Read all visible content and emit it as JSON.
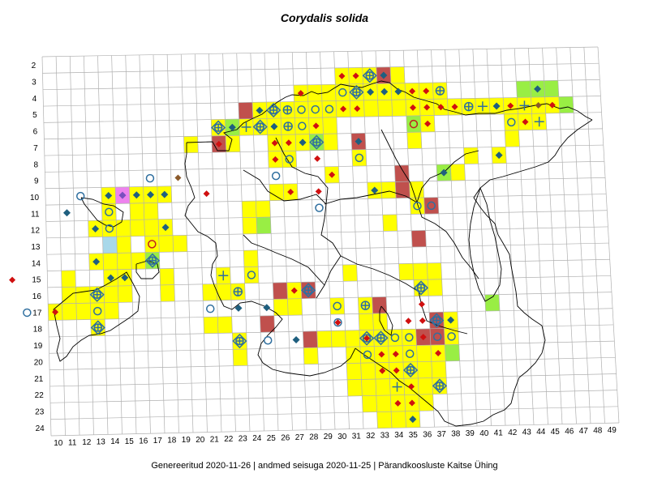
{
  "title": "Corydalis solida",
  "footer": "Genereeritud 2020-11-26  |  andmed seisuga 2020-11-25  |  Pärandkoosluste Kaitse Ühing",
  "grid": {
    "columns": [
      10,
      11,
      12,
      13,
      14,
      15,
      16,
      17,
      18,
      19,
      20,
      21,
      22,
      23,
      24,
      25,
      26,
      27,
      28,
      29,
      30,
      31,
      32,
      33,
      34,
      35,
      36,
      37,
      38,
      39,
      40,
      41,
      42,
      43,
      44,
      45,
      46,
      47,
      48,
      49
    ],
    "rows": [
      2,
      3,
      4,
      5,
      6,
      7,
      8,
      9,
      10,
      11,
      12,
      13,
      14,
      15,
      16,
      17,
      18,
      19,
      20,
      21,
      22,
      23,
      24
    ]
  },
  "colors": {
    "yellow": "#ffff00",
    "red": "#c0504d",
    "green": "#99ee44",
    "lightblue": "#a8d8ea",
    "pink": "#ee82ee",
    "diamond_blue": "#1f5f7f",
    "diamond_red": "#d01010",
    "diamond_brown": "#8b5a2b",
    "ring_blue": "#2f6f9f",
    "ring_red": "#c02020"
  },
  "cells": [
    {
      "c": 31,
      "r": 3,
      "f": "yellow",
      "m": "dr"
    },
    {
      "c": 32,
      "r": 3,
      "f": "yellow",
      "m": "dr"
    },
    {
      "c": 33,
      "r": 3,
      "f": "yellow",
      "m": "cdx"
    },
    {
      "c": 34,
      "r": 3,
      "f": "red",
      "m": "db"
    },
    {
      "c": 35,
      "r": 3,
      "f": "yellow"
    },
    {
      "c": 28,
      "r": 4,
      "f": "yellow",
      "m": "dr"
    },
    {
      "c": 29,
      "r": 4,
      "f": "yellow"
    },
    {
      "c": 30,
      "r": 4,
      "f": "yellow"
    },
    {
      "c": 31,
      "r": 4,
      "f": "yellow",
      "m": "o"
    },
    {
      "c": 32,
      "r": 4,
      "f": "yellow",
      "m": "cdx"
    },
    {
      "c": 33,
      "r": 4,
      "f": "yellow",
      "m": "db"
    },
    {
      "c": 34,
      "r": 4,
      "f": "yellow",
      "m": "db"
    },
    {
      "c": 35,
      "r": 4,
      "f": "yellow",
      "m": "db"
    },
    {
      "c": 36,
      "r": 4,
      "f": "yellow",
      "m": "dr"
    },
    {
      "c": 37,
      "r": 4,
      "f": "yellow",
      "m": "dr"
    },
    {
      "c": 38,
      "r": 4,
      "f": "yellow",
      "m": "ox"
    },
    {
      "c": 44,
      "r": 4,
      "f": "green"
    },
    {
      "c": 45,
      "r": 4,
      "f": "green",
      "m": "db"
    },
    {
      "c": 46,
      "r": 4,
      "f": "green"
    },
    {
      "c": 24,
      "r": 5,
      "f": "red"
    },
    {
      "c": 25,
      "r": 5,
      "f": "yellow",
      "m": "dd"
    },
    {
      "c": 26,
      "r": 5,
      "f": "yellow",
      "m": "cdx"
    },
    {
      "c": 27,
      "r": 5,
      "f": "yellow",
      "m": "ox"
    },
    {
      "c": 28,
      "r": 5,
      "f": "yellow",
      "m": "o"
    },
    {
      "c": 29,
      "r": 5,
      "f": "yellow",
      "m": "o"
    },
    {
      "c": 30,
      "r": 5,
      "f": "yellow",
      "m": "o"
    },
    {
      "c": 31,
      "r": 5,
      "f": "yellow",
      "m": "dr"
    },
    {
      "c": 32,
      "r": 5,
      "f": "yellow",
      "m": "dr"
    },
    {
      "c": 33,
      "r": 5,
      "f": "yellow"
    },
    {
      "c": 34,
      "r": 5,
      "f": "yellow"
    },
    {
      "c": 35,
      "r": 5,
      "f": "yellow"
    },
    {
      "c": 36,
      "r": 5,
      "f": "yellow",
      "m": "dr"
    },
    {
      "c": 37,
      "r": 5,
      "f": "yellow",
      "m": "dr"
    },
    {
      "c": 38,
      "r": 5,
      "f": "yellow",
      "m": "dr"
    },
    {
      "c": 39,
      "r": 5,
      "f": "yellow",
      "m": "dr"
    },
    {
      "c": 40,
      "r": 5,
      "f": "yellow",
      "m": "ox"
    },
    {
      "c": 41,
      "r": 5,
      "f": "yellow",
      "m": "p"
    },
    {
      "c": 42,
      "r": 5,
      "f": "yellow",
      "m": "db"
    },
    {
      "c": 43,
      "r": 5,
      "f": "yellow",
      "m": "dr"
    },
    {
      "c": 44,
      "r": 5,
      "f": "yellow",
      "m": "p"
    },
    {
      "c": 45,
      "r": 5,
      "f": "yellow",
      "m": "dbr"
    },
    {
      "c": 46,
      "r": 5,
      "f": "yellow",
      "m": "dr"
    },
    {
      "c": 47,
      "r": 5,
      "f": "green"
    },
    {
      "c": 22,
      "r": 6,
      "f": "yellow",
      "m": "cdx"
    },
    {
      "c": 23,
      "r": 6,
      "f": "green",
      "m": "db"
    },
    {
      "c": 24,
      "r": 6,
      "f": "yellow",
      "m": "p"
    },
    {
      "c": 25,
      "r": 6,
      "f": "yellow",
      "m": "cdx"
    },
    {
      "c": 26,
      "r": 6,
      "f": "yellow",
      "m": "db"
    },
    {
      "c": 27,
      "r": 6,
      "f": "yellow",
      "m": "ox"
    },
    {
      "c": 28,
      "r": 6,
      "f": "yellow",
      "m": "o"
    },
    {
      "c": 29,
      "r": 6,
      "f": "yellow",
      "m": "dr"
    },
    {
      "c": 30,
      "r": 6,
      "f": "yellow"
    },
    {
      "c": 36,
      "r": 6,
      "f": "green",
      "m": "or"
    },
    {
      "c": 37,
      "r": 6,
      "f": "yellow",
      "m": "dr"
    },
    {
      "c": 43,
      "r": 6,
      "f": "yellow",
      "m": "o"
    },
    {
      "c": 44,
      "r": 6,
      "f": "yellow",
      "m": "dr"
    },
    {
      "c": 45,
      "r": 6,
      "f": "yellow",
      "m": "p"
    },
    {
      "c": 20,
      "r": 7,
      "f": "yellow"
    },
    {
      "c": 22,
      "r": 7,
      "f": "red",
      "m": "dr"
    },
    {
      "c": 23,
      "r": 7,
      "f": "yellow"
    },
    {
      "c": 26,
      "r": 7,
      "f": "yellow",
      "m": "dr"
    },
    {
      "c": 27,
      "r": 7,
      "f": "yellow"
    },
    {
      "c": 28,
      "r": 7,
      "f": "yellow",
      "m": "db"
    },
    {
      "c": 29,
      "r": 7,
      "f": "green",
      "m": "cdx"
    },
    {
      "c": 30,
      "r": 7,
      "f": "yellow"
    },
    {
      "c": 32,
      "r": 7,
      "f": "red",
      "m": "db"
    },
    {
      "c": 36,
      "r": 7,
      "f": "yellow"
    },
    {
      "c": 43,
      "r": 7,
      "f": "yellow"
    },
    {
      "c": 26,
      "r": 8,
      "f": "yellow",
      "m": "dr"
    },
    {
      "c": 27,
      "r": 8,
      "f": "yellow",
      "m": "o"
    },
    {
      "c": 32,
      "r": 8,
      "f": "yellow",
      "m": "o"
    },
    {
      "c": 40,
      "r": 8,
      "f": "yellow"
    },
    {
      "c": 42,
      "r": 8,
      "f": "yellow",
      "m": "db"
    },
    {
      "c": 30,
      "r": 9,
      "f": "yellow",
      "m": "dr"
    },
    {
      "c": 35,
      "r": 9,
      "f": "red"
    },
    {
      "c": 38,
      "r": 9,
      "f": "green",
      "m": "db"
    },
    {
      "c": 39,
      "r": 9,
      "f": "yellow"
    },
    {
      "c": 14,
      "r": 10,
      "f": "yellow",
      "m": "db"
    },
    {
      "c": 15,
      "r": 10,
      "f": "pink",
      "m": "dp"
    },
    {
      "c": 16,
      "r": 10,
      "f": "yellow",
      "m": "db"
    },
    {
      "c": 17,
      "r": 10,
      "f": "yellow",
      "m": "db"
    },
    {
      "c": 18,
      "r": 10,
      "f": "yellow",
      "m": "db"
    },
    {
      "c": 26,
      "r": 10,
      "f": "yellow"
    },
    {
      "c": 27,
      "r": 10,
      "f": "yellow",
      "m": "dr"
    },
    {
      "c": 33,
      "r": 10,
      "f": "yellow",
      "m": "db"
    },
    {
      "c": 34,
      "r": 10,
      "f": "yellow"
    },
    {
      "c": 35,
      "r": 10,
      "f": "red"
    },
    {
      "c": 36,
      "r": 10,
      "f": "yellow"
    },
    {
      "c": 14,
      "r": 11,
      "f": "yellow",
      "m": "o"
    },
    {
      "c": 16,
      "r": 11,
      "f": "yellow"
    },
    {
      "c": 17,
      "r": 11,
      "f": "yellow"
    },
    {
      "c": 24,
      "r": 11,
      "f": "yellow"
    },
    {
      "c": 25,
      "r": 11,
      "f": "yellow"
    },
    {
      "c": 36,
      "r": 11,
      "f": "yellow"
    },
    {
      "c": 37,
      "r": 11,
      "f": "red",
      "m": "o"
    },
    {
      "c": 13,
      "r": 12,
      "f": "yellow",
      "m": "db"
    },
    {
      "c": 14,
      "r": 12,
      "f": "yellow",
      "m": "o"
    },
    {
      "c": 15,
      "r": 12,
      "f": "yellow"
    },
    {
      "c": 16,
      "r": 12,
      "f": "yellow"
    },
    {
      "c": 17,
      "r": 12,
      "f": "yellow"
    },
    {
      "c": 18,
      "r": 12,
      "f": "yellow",
      "m": "db"
    },
    {
      "c": 24,
      "r": 12,
      "f": "yellow"
    },
    {
      "c": 25,
      "r": 12,
      "f": "green"
    },
    {
      "c": 34,
      "r": 12,
      "f": "yellow"
    },
    {
      "c": 14,
      "r": 13,
      "f": "lightblue"
    },
    {
      "c": 15,
      "r": 13,
      "f": "yellow"
    },
    {
      "c": 17,
      "r": 13,
      "f": "yellow",
      "m": "or"
    },
    {
      "c": 18,
      "r": 13,
      "f": "yellow"
    },
    {
      "c": 19,
      "r": 13,
      "f": "yellow"
    },
    {
      "c": 36,
      "r": 13,
      "f": "red"
    },
    {
      "c": 13,
      "r": 14,
      "f": "yellow",
      "m": "db"
    },
    {
      "c": 14,
      "r": 14,
      "f": "yellow"
    },
    {
      "c": 15,
      "r": 14,
      "f": "yellow"
    },
    {
      "c": 16,
      "r": 14,
      "f": "yellow"
    },
    {
      "c": 17,
      "r": 14,
      "f": "green",
      "m": "cdx"
    },
    {
      "c": 24,
      "r": 14,
      "f": "yellow"
    },
    {
      "c": 11,
      "r": 15,
      "f": "yellow"
    },
    {
      "c": 14,
      "r": 15,
      "f": "yellow",
      "m": "db"
    },
    {
      "c": 15,
      "r": 15,
      "f": "yellow",
      "m": "db"
    },
    {
      "c": 18,
      "r": 15,
      "f": "yellow"
    },
    {
      "c": 22,
      "r": 15,
      "f": "yellow",
      "m": "p"
    },
    {
      "c": 24,
      "r": 15,
      "f": "yellow",
      "m": "o"
    },
    {
      "c": 31,
      "r": 15,
      "f": "yellow"
    },
    {
      "c": 35,
      "r": 15,
      "f": "yellow"
    },
    {
      "c": 36,
      "r": 15,
      "f": "yellow"
    },
    {
      "c": 37,
      "r": 15,
      "f": "yellow"
    },
    {
      "c": 11,
      "r": 16,
      "f": "yellow"
    },
    {
      "c": 12,
      "r": 16,
      "f": "yellow"
    },
    {
      "c": 13,
      "r": 16,
      "f": "yellow",
      "m": "cdx"
    },
    {
      "c": 14,
      "r": 16,
      "f": "yellow"
    },
    {
      "c": 15,
      "r": 16,
      "f": "yellow"
    },
    {
      "c": 18,
      "r": 16,
      "f": "yellow"
    },
    {
      "c": 21,
      "r": 16,
      "f": "yellow"
    },
    {
      "c": 22,
      "r": 16,
      "f": "yellow"
    },
    {
      "c": 23,
      "r": 16,
      "f": "yellow",
      "m": "ox"
    },
    {
      "c": 26,
      "r": 16,
      "f": "red"
    },
    {
      "c": 27,
      "r": 16,
      "f": "yellow",
      "m": "dr"
    },
    {
      "c": 28,
      "r": 16,
      "f": "red",
      "m": "cdx"
    },
    {
      "c": 36,
      "r": 16,
      "f": "yellow",
      "m": "cdx"
    },
    {
      "c": 37,
      "r": 16,
      "f": "yellow"
    },
    {
      "c": 10,
      "r": 17,
      "f": "yellow",
      "m": "dr"
    },
    {
      "c": 11,
      "r": 17,
      "f": "yellow"
    },
    {
      "c": 12,
      "r": 17,
      "f": "yellow"
    },
    {
      "c": 13,
      "r": 17,
      "f": "yellow",
      "m": "o"
    },
    {
      "c": 14,
      "r": 17,
      "f": "yellow"
    },
    {
      "c": 26,
      "r": 17,
      "f": "yellow"
    },
    {
      "c": 27,
      "r": 17,
      "f": "yellow"
    },
    {
      "c": 30,
      "r": 17,
      "f": "yellow",
      "m": "o"
    },
    {
      "c": 32,
      "r": 17,
      "f": "yellow",
      "m": "ox"
    },
    {
      "c": 33,
      "r": 17,
      "f": "red"
    },
    {
      "c": 41,
      "r": 17,
      "f": "green"
    },
    {
      "c": 13,
      "r": 18,
      "f": "yellow",
      "m": "cdx"
    },
    {
      "c": 21,
      "r": 18,
      "f": "yellow"
    },
    {
      "c": 22,
      "r": 18,
      "f": "yellow"
    },
    {
      "c": 25,
      "r": 18,
      "f": "red"
    },
    {
      "c": 32,
      "r": 18,
      "f": "yellow"
    },
    {
      "c": 33,
      "r": 18,
      "f": "yellow"
    },
    {
      "c": 37,
      "r": 18,
      "f": "red",
      "m": "cdx"
    },
    {
      "c": 38,
      "r": 18,
      "f": "yellow",
      "m": "db"
    },
    {
      "c": 23,
      "r": 19,
      "f": "yellow",
      "m": "cdx"
    },
    {
      "c": 28,
      "r": 19,
      "f": "red"
    },
    {
      "c": 29,
      "r": 19,
      "f": "yellow"
    },
    {
      "c": 30,
      "r": 19,
      "f": "yellow"
    },
    {
      "c": 31,
      "r": 19,
      "f": "yellow"
    },
    {
      "c": 32,
      "r": 19,
      "f": "yellow",
      "m": "cdx"
    },
    {
      "c": 33,
      "r": 19,
      "f": "yellow",
      "m": "cdx"
    },
    {
      "c": 34,
      "r": 19,
      "f": "yellow",
      "m": "o"
    },
    {
      "c": 35,
      "r": 19,
      "f": "yellow",
      "m": "o"
    },
    {
      "c": 36,
      "r": 19,
      "f": "red",
      "m": "dr"
    },
    {
      "c": 37,
      "r": 19,
      "f": "red",
      "m": "o"
    },
    {
      "c": 38,
      "r": 19,
      "f": "yellow",
      "m": "o"
    },
    {
      "c": 23,
      "r": 20,
      "f": "yellow"
    },
    {
      "c": 28,
      "r": 20,
      "f": "yellow"
    },
    {
      "c": 31,
      "r": 20,
      "f": "yellow"
    },
    {
      "c": 32,
      "r": 20,
      "f": "yellow",
      "m": "o"
    },
    {
      "c": 33,
      "r": 20,
      "f": "yellow",
      "m": "dr"
    },
    {
      "c": 34,
      "r": 20,
      "f": "yellow",
      "m": "dr"
    },
    {
      "c": 35,
      "r": 20,
      "f": "yellow",
      "m": "o"
    },
    {
      "c": 36,
      "r": 20,
      "f": "yellow"
    },
    {
      "c": 37,
      "r": 20,
      "f": "yellow",
      "m": "dr"
    },
    {
      "c": 38,
      "r": 20,
      "f": "green"
    },
    {
      "c": 31,
      "r": 21,
      "f": "yellow"
    },
    {
      "c": 32,
      "r": 21,
      "f": "yellow"
    },
    {
      "c": 33,
      "r": 21,
      "f": "yellow",
      "m": "dr"
    },
    {
      "c": 34,
      "r": 21,
      "f": "yellow",
      "m": "dr"
    },
    {
      "c": 35,
      "r": 21,
      "f": "yellow",
      "m": "cdx"
    },
    {
      "c": 36,
      "r": 21,
      "f": "yellow"
    },
    {
      "c": 37,
      "r": 21,
      "f": "yellow"
    },
    {
      "c": 31,
      "r": 22,
      "f": "yellow"
    },
    {
      "c": 32,
      "r": 22,
      "f": "yellow"
    },
    {
      "c": 33,
      "r": 22,
      "f": "yellow"
    },
    {
      "c": 34,
      "r": 22,
      "f": "yellow",
      "m": "p"
    },
    {
      "c": 35,
      "r": 22,
      "f": "yellow",
      "m": "dr"
    },
    {
      "c": 36,
      "r": 22,
      "f": "yellow"
    },
    {
      "c": 37,
      "r": 22,
      "f": "yellow",
      "m": "cdx"
    },
    {
      "c": 32,
      "r": 23,
      "f": "yellow"
    },
    {
      "c": 33,
      "r": 23,
      "f": "yellow"
    },
    {
      "c": 34,
      "r": 23,
      "f": "yellow",
      "m": "dr"
    },
    {
      "c": 35,
      "r": 23,
      "f": "yellow",
      "m": "dr"
    },
    {
      "c": 36,
      "r": 23,
      "f": "yellow"
    },
    {
      "c": 33,
      "r": 24,
      "f": "yellow"
    },
    {
      "c": 34,
      "r": 24,
      "f": "yellow"
    },
    {
      "c": 35,
      "r": 24,
      "f": "yellow",
      "m": "db"
    }
  ],
  "markers": [
    {
      "c": 12,
      "r": 10,
      "m": "o"
    },
    {
      "c": 19,
      "r": 9,
      "m": "dbr"
    },
    {
      "c": 21,
      "r": 10,
      "m": "dr"
    },
    {
      "c": 17,
      "r": 9,
      "m": "o"
    },
    {
      "c": 11,
      "r": 11,
      "m": "db"
    },
    {
      "c": 7,
      "r": 15,
      "m": "dr"
    },
    {
      "c": 8,
      "r": 17,
      "m": "o"
    },
    {
      "c": 23,
      "r": 17,
      "m": "db"
    },
    {
      "c": 25,
      "r": 17,
      "m": "db"
    },
    {
      "c": 21,
      "r": 17,
      "m": "o"
    },
    {
      "c": 30,
      "r": 18,
      "m": "o"
    },
    {
      "c": 25,
      "r": 19,
      "m": "o"
    },
    {
      "c": 27,
      "r": 19,
      "m": "db"
    },
    {
      "c": 30,
      "r": 18,
      "m": "dr"
    },
    {
      "c": 35,
      "r": 18,
      "m": "dr"
    },
    {
      "c": 36,
      "r": 18,
      "m": "dr"
    },
    {
      "c": 32,
      "r": 19,
      "m": "dr"
    },
    {
      "c": 26,
      "r": 9,
      "m": "o"
    },
    {
      "c": 27,
      "r": 7,
      "m": "dr"
    },
    {
      "c": 29,
      "r": 8,
      "m": "dr"
    },
    {
      "c": 29,
      "r": 10,
      "m": "dr"
    },
    {
      "c": 29,
      "r": 11,
      "m": "o"
    },
    {
      "c": 36,
      "r": 11,
      "m": "o"
    },
    {
      "c": 36,
      "r": 17,
      "m": "dr"
    }
  ]
}
